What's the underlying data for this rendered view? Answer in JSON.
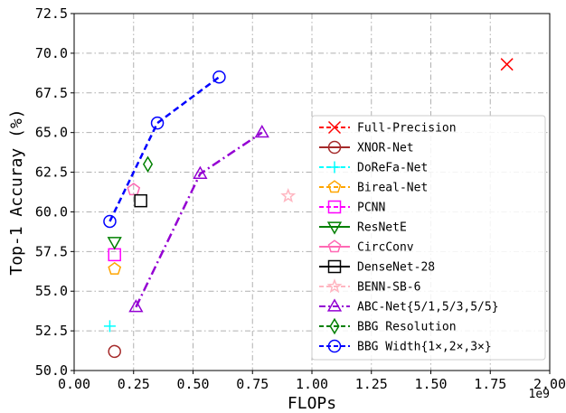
{
  "chart_data": {
    "type": "scatter",
    "xlabel": "FLOPs",
    "ylabel": "Top-1 Accuray (%)",
    "x_offset_label": "1e9",
    "xlim": [
      0.0,
      2.0
    ],
    "ylim": [
      50.0,
      72.5
    ],
    "xticks": [
      0.0,
      0.25,
      0.5,
      0.75,
      1.0,
      1.25,
      1.5,
      1.75,
      2.0
    ],
    "xtick_labels": [
      "0.00",
      "0.25",
      "0.50",
      "0.75",
      "1.00",
      "1.25",
      "1.50",
      "1.75",
      "2.00"
    ],
    "yticks": [
      50.0,
      52.5,
      55.0,
      57.5,
      60.0,
      62.5,
      65.0,
      67.5,
      70.0,
      72.5
    ],
    "ytick_labels": [
      "50.0",
      "52.5",
      "55.0",
      "57.5",
      "60.0",
      "62.5",
      "65.0",
      "67.5",
      "70.0",
      "72.5"
    ],
    "grid": true,
    "grid_style": "dash-dot",
    "legend_position": "right",
    "series": [
      {
        "name": "Full-Precision",
        "color": "#ff0000",
        "marker": "x",
        "line": "dashed",
        "points": [
          [
            1.82,
            69.3
          ]
        ]
      },
      {
        "name": "XNOR-Net",
        "color": "#a52a2a",
        "marker": "o",
        "line": "solid",
        "points": [
          [
            0.17,
            51.2
          ]
        ]
      },
      {
        "name": "DoReFa-Net",
        "color": "#00ffff",
        "marker": "+",
        "line": "dashed",
        "points": [
          [
            0.15,
            52.8
          ]
        ]
      },
      {
        "name": "Bireal-Net",
        "color": "#ffa500",
        "marker": "pentagon",
        "line": "dashed",
        "points": [
          [
            0.17,
            56.4
          ]
        ]
      },
      {
        "name": "PCNN",
        "color": "#ff00ff",
        "marker": "square",
        "line": "dashed",
        "points": [
          [
            0.17,
            57.3
          ]
        ]
      },
      {
        "name": "ResNetE",
        "color": "#008000",
        "marker": "triangle-down",
        "line": "solid",
        "points": [
          [
            0.17,
            58.1
          ]
        ]
      },
      {
        "name": "CircConv",
        "color": "#ff69b4",
        "marker": "pentagon",
        "line": "solid",
        "points": [
          [
            0.25,
            61.4
          ]
        ]
      },
      {
        "name": "DenseNet-28",
        "color": "#000000",
        "marker": "square",
        "line": "solid",
        "points": [
          [
            0.28,
            60.7
          ]
        ]
      },
      {
        "name": "BENN-SB-6",
        "color": "#ffb6c1",
        "marker": "star",
        "line": "dashed",
        "points": [
          [
            0.9,
            61.0
          ]
        ]
      },
      {
        "name": "ABC-Net{5/1,5/3,5/5}",
        "color": "#9400d3",
        "marker": "triangle-up",
        "line": "dashdot",
        "points": [
          [
            0.26,
            54.0
          ],
          [
            0.53,
            62.4
          ],
          [
            0.79,
            65.0
          ]
        ]
      },
      {
        "name": "BBG Resolution",
        "color": "#008000",
        "marker": "diamond",
        "line": "dashed",
        "points": [
          [
            0.31,
            63.0
          ]
        ]
      },
      {
        "name": "BBG Width{1×,2×,3×}",
        "color": "#0000ff",
        "marker": "o",
        "line": "dashed",
        "points": [
          [
            0.15,
            59.4
          ],
          [
            0.35,
            65.6
          ],
          [
            0.61,
            68.5
          ]
        ]
      }
    ]
  }
}
